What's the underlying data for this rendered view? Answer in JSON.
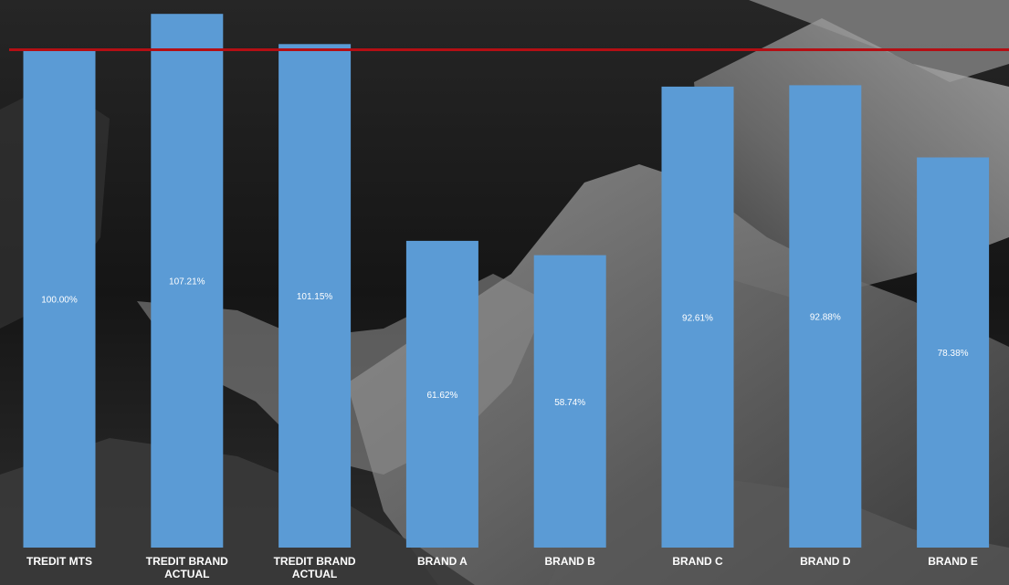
{
  "chart_data": {
    "type": "bar",
    "categories": [
      "TREDIT MTS",
      "TREDIT BRAND ACTUAL",
      "TREDIT BRAND ACTUAL",
      "BRAND A",
      "BRAND B",
      "BRAND C",
      "BRAND D",
      "BRAND E"
    ],
    "values": [
      100.0,
      107.21,
      101.15,
      61.62,
      58.74,
      92.61,
      92.88,
      78.38
    ],
    "data_labels": [
      "100.00%",
      "107.21%",
      "101.15%",
      "61.62%",
      "58.74%",
      "92.61%",
      "92.88%",
      "78.38%"
    ],
    "reference_line": {
      "value": 100
    },
    "ylim": [
      0,
      110
    ],
    "grid": false,
    "legend": "none",
    "title": "",
    "xlabel": "",
    "ylabel": ""
  },
  "colors": {
    "bar": "#5b9bd5",
    "reference_line": "#b40f14",
    "label_text": "#ffffff",
    "background": "#1c1c1c"
  }
}
